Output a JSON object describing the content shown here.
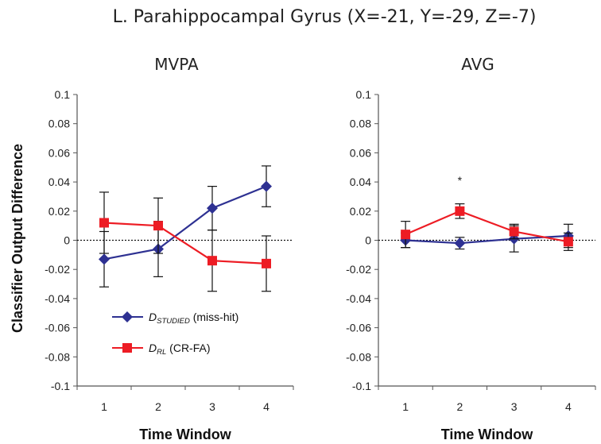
{
  "figure": {
    "title": "L. Parahippocampal Gyrus (X=-21, Y=-29, Z=-7)",
    "ylabel": "Classifier Output Difference"
  },
  "legend": {
    "items": [
      {
        "series": "D_STUDIED",
        "prefix": "D",
        "subscript": "STUDIED",
        "suffix": " (miss-hit)",
        "color": "#2e3192",
        "marker": "diamond"
      },
      {
        "series": "D_RL",
        "prefix": "D",
        "subscript": "RL",
        "suffix": " (CR-FA)",
        "color": "#ed1c24",
        "marker": "square"
      }
    ]
  },
  "chart_data": [
    {
      "type": "line",
      "title": "MVPA",
      "xlabel": "Time Window",
      "ylabel": "Classifier Output Difference",
      "categories": [
        "1",
        "2",
        "3",
        "4"
      ],
      "ylim": [
        -0.1,
        0.1
      ],
      "yticks": [
        "0.1",
        "0.08",
        "0.06",
        "0.04",
        "0.02",
        "0",
        "-0.02",
        "-0.04",
        "-0.06",
        "-0.08",
        "-0.1"
      ],
      "series": [
        {
          "name": "D_STUDIED (miss-hit)",
          "color": "#2e3192",
          "marker": "diamond",
          "values": [
            -0.013,
            -0.006,
            0.022,
            0.037
          ],
          "errors": [
            0.019,
            0.019,
            0.015,
            0.014
          ]
        },
        {
          "name": "D_RL (CR-FA)",
          "color": "#ed1c24",
          "marker": "square",
          "values": [
            0.012,
            0.01,
            -0.014,
            -0.016
          ],
          "errors": [
            0.021,
            0.019,
            0.021,
            0.019
          ]
        }
      ],
      "annotations": []
    },
    {
      "type": "line",
      "title": "AVG",
      "xlabel": "Time Window",
      "ylabel": "",
      "categories": [
        "1",
        "2",
        "3",
        "4"
      ],
      "ylim": [
        -0.1,
        0.1
      ],
      "yticks": [
        "0.1",
        "0.08",
        "0.06",
        "0.04",
        "0.02",
        "0",
        "-0.02",
        "-0.04",
        "-0.06",
        "-0.08",
        "-0.1"
      ],
      "series": [
        {
          "name": "D_STUDIED (miss-hit)",
          "color": "#2e3192",
          "marker": "diamond",
          "values": [
            0.0,
            -0.002,
            0.001,
            0.003
          ],
          "errors": [
            0.005,
            0.004,
            0.009,
            0.008
          ]
        },
        {
          "name": "D_RL (CR-FA)",
          "color": "#ed1c24",
          "marker": "square",
          "values": [
            0.004,
            0.02,
            0.006,
            -0.001
          ],
          "errors": [
            0.009,
            0.005,
            0.005,
            0.006
          ]
        }
      ],
      "annotations": [
        {
          "text": "*",
          "category": "2"
        }
      ]
    }
  ]
}
